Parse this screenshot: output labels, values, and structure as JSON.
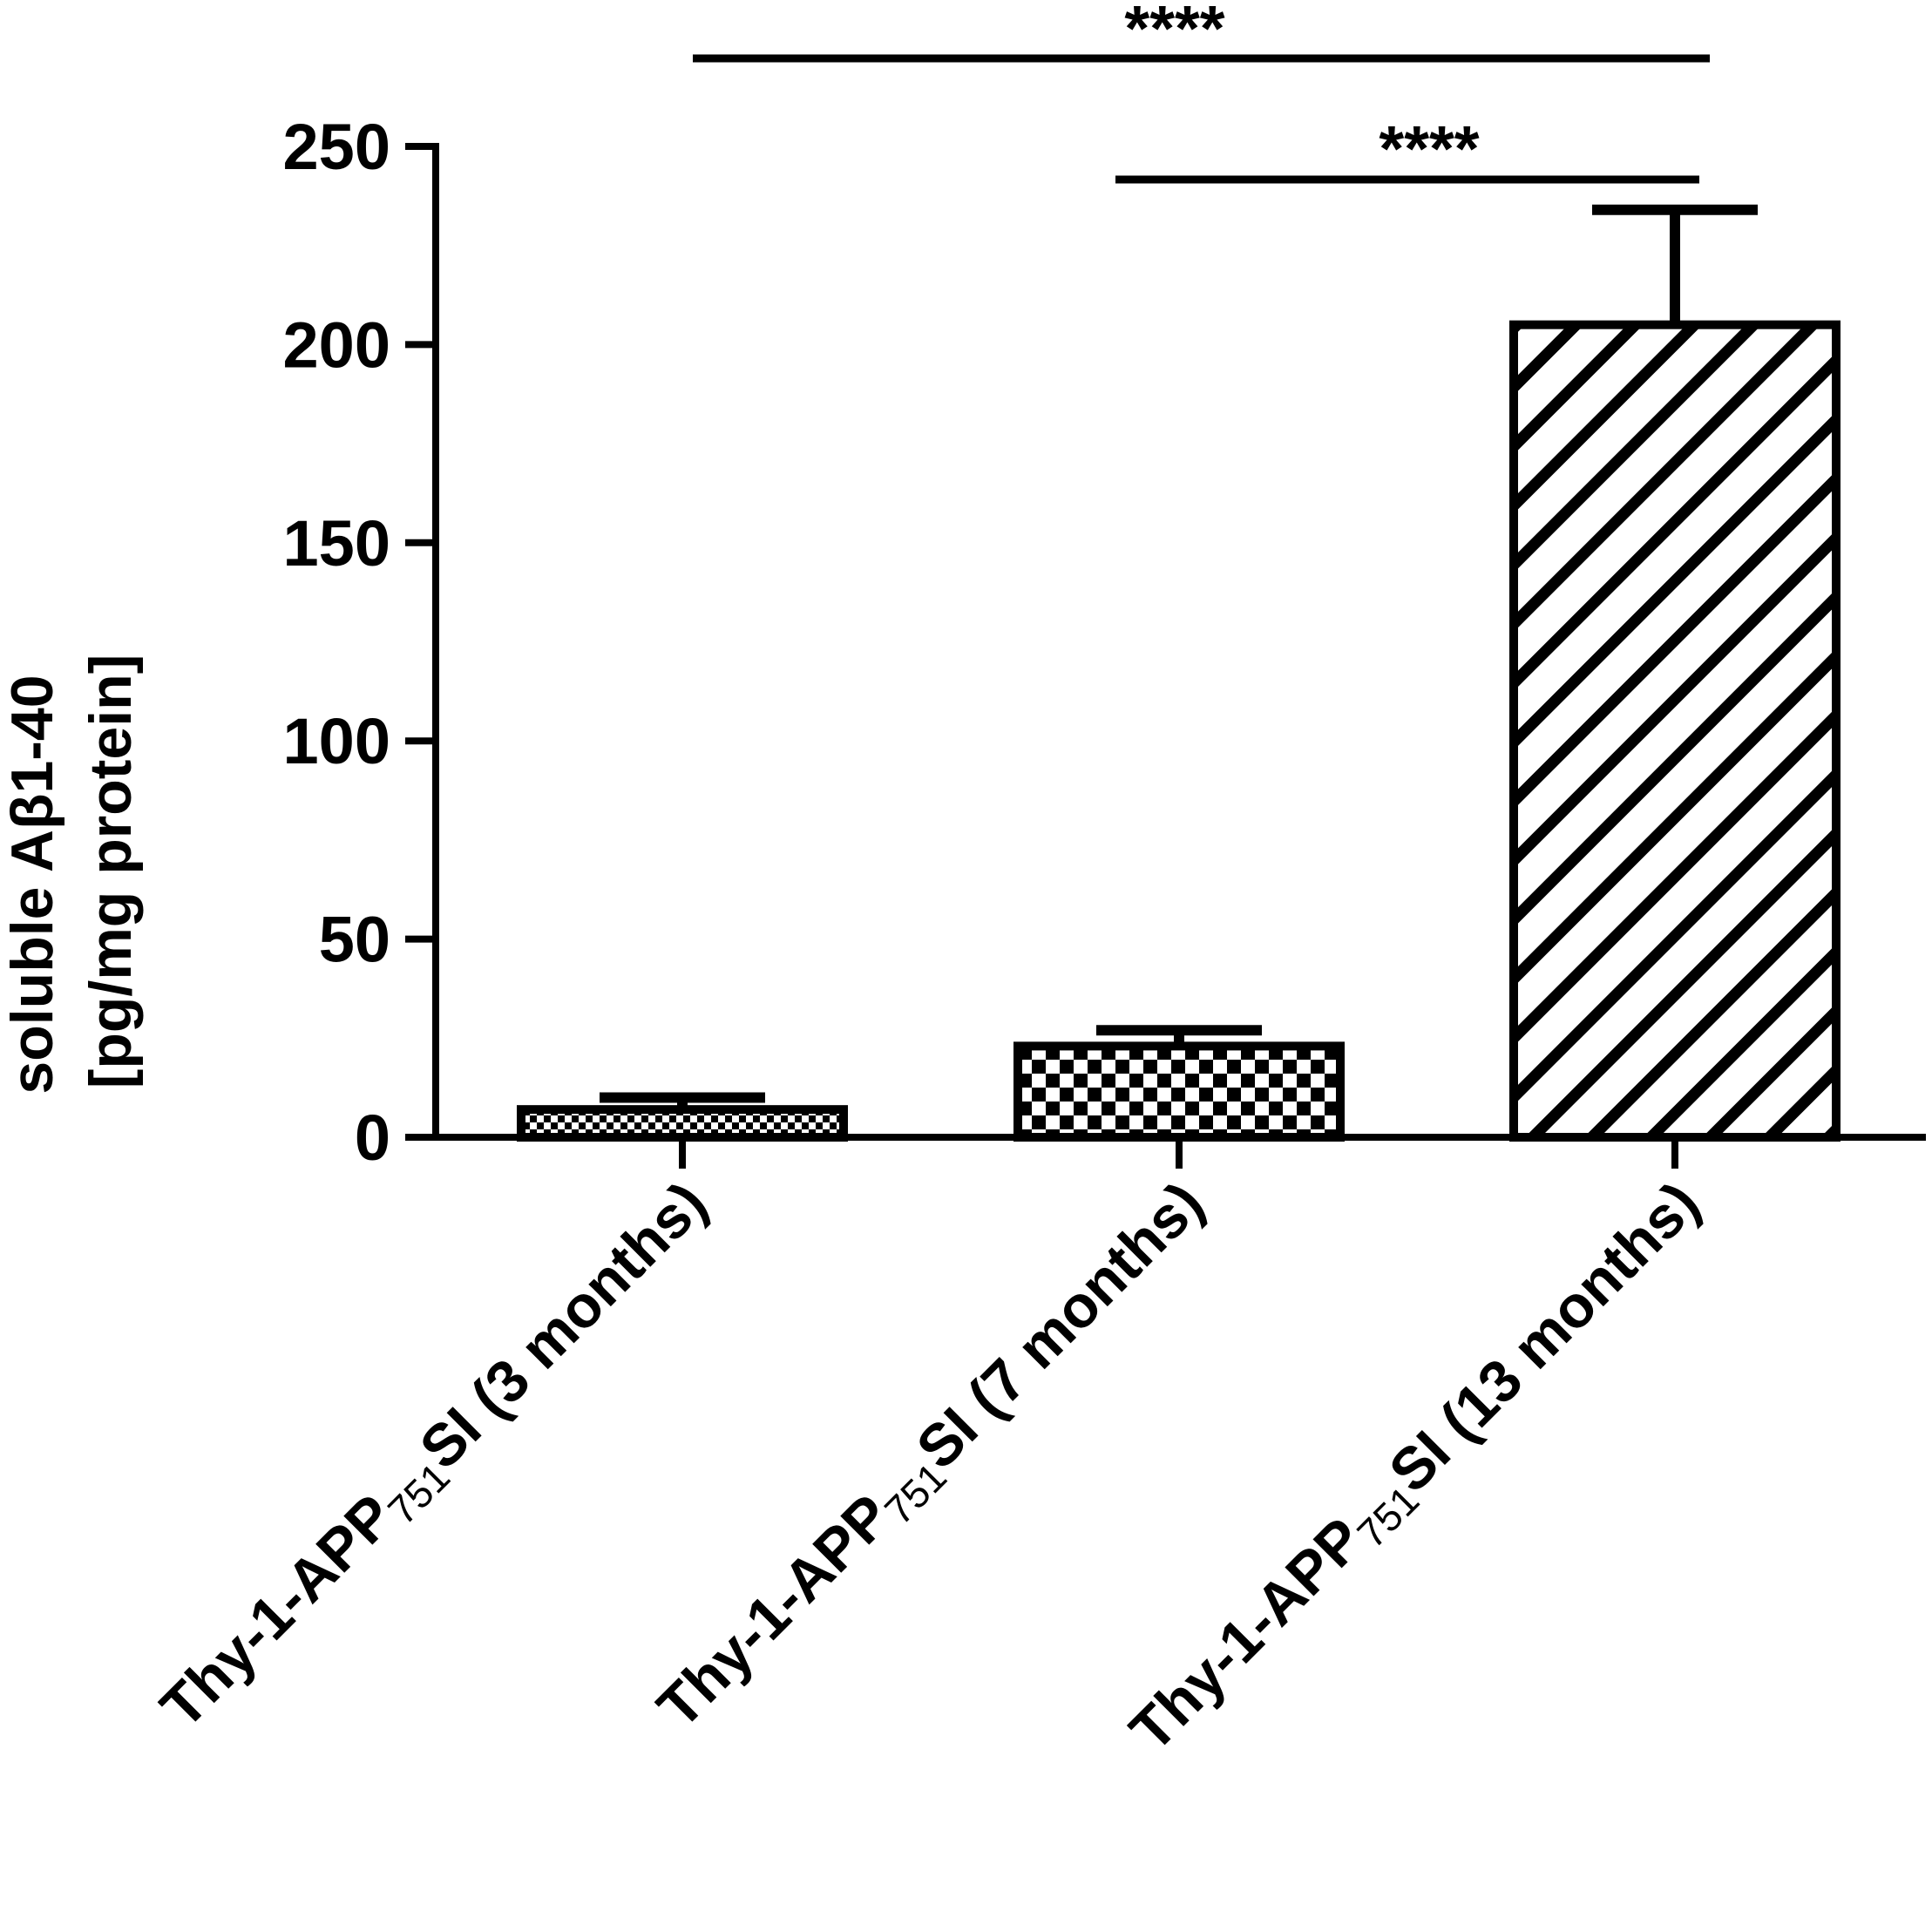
{
  "chart_data": {
    "type": "bar",
    "ylabel": [
      "soluble Aβ1-40",
      "[pg/mg protein]"
    ],
    "ylim": [
      0,
      250
    ],
    "yticks": [
      0,
      50,
      100,
      150,
      200,
      250
    ],
    "categories": [
      {
        "main": "Thy-1-APP",
        "sub": "751",
        "suffix": "SI (3 months)"
      },
      {
        "main": "Thy-1-APP",
        "sub": "751",
        "suffix": "SI (7 months)"
      },
      {
        "main": "Thy-1-APP",
        "sub": "751",
        "suffix": "SI (13 months)"
      }
    ],
    "values": [
      7,
      23,
      205
    ],
    "errors": [
      3,
      4,
      29
    ],
    "fill_patterns": [
      "fine-checker",
      "checker",
      "diagonal-hatch"
    ],
    "significance": [
      {
        "from": 0,
        "to": 2,
        "label": "****"
      },
      {
        "from": 1,
        "to": 2,
        "label": "****"
      }
    ],
    "colors": {
      "ink": "#000000",
      "background": "#ffffff"
    }
  }
}
